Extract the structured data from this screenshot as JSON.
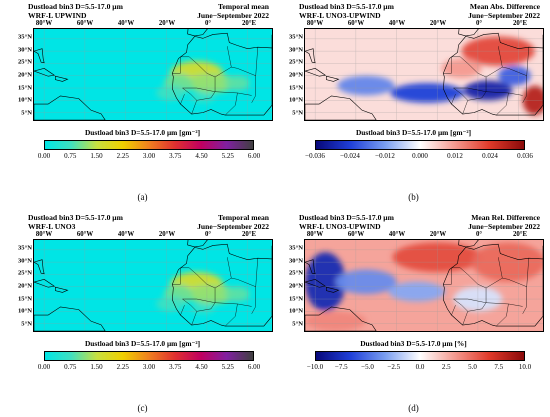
{
  "panels": [
    {
      "id": "a",
      "title_line1": "Dustload bin3 D=5.5-17.0 μm",
      "title_line2": "WRF-L UPWIND",
      "right_line1": "Temporal mean",
      "right_line2": "June−September 2022",
      "lon_labels": [
        "80°W",
        "60°W",
        "40°W",
        "20°W",
        "0°",
        "20°E"
      ],
      "lat_labels": [
        "35°N",
        "30°N",
        "25°N",
        "20°N",
        "15°N",
        "10°N",
        "5°N"
      ],
      "colorbar_title": "Dustload bin3 D=5.5-17.0 μm [gm⁻²]",
      "colorbar_ticks": [
        "0.00",
        "0.75",
        "1.50",
        "2.25",
        "3.00",
        "3.75",
        "4.50",
        "5.25",
        "6.00"
      ],
      "caption": "(a)"
    },
    {
      "id": "b",
      "title_line1": "Dustload bin3 D=5.5-17.0 μm",
      "title_line2": "WRF-L UNO3-UPWIND",
      "right_line1": "Mean Abs. Difference",
      "right_line2": "June−September 2022",
      "lon_labels": [
        "80°W",
        "60°W",
        "40°W",
        "20°W",
        "0°",
        "20°E"
      ],
      "lat_labels": [
        "35°N",
        "30°N",
        "25°N",
        "20°N",
        "15°N",
        "10°N",
        "5°N"
      ],
      "colorbar_title": "Dustload bin3 D=5.5-17.0 μm [gm⁻²]",
      "colorbar_ticks": [
        "−0.036",
        "−0.024",
        "−0.012",
        "0.000",
        "0.012",
        "0.024",
        "0.036"
      ],
      "caption": "(b)"
    },
    {
      "id": "c",
      "title_line1": "Dustload bin3 D=5.5-17.0 μm",
      "title_line2": "WRF-L UNO3",
      "right_line1": "Temporal mean",
      "right_line2": "June−September 2022",
      "lon_labels": [
        "80°W",
        "60°W",
        "40°W",
        "20°W",
        "0°",
        "20°E"
      ],
      "lat_labels": [
        "35°N",
        "30°N",
        "25°N",
        "20°N",
        "15°N",
        "10°N",
        "5°N"
      ],
      "colorbar_title": "Dustload bin3 D=5.5-17.0 μm [gm⁻²]",
      "colorbar_ticks": [
        "0.00",
        "0.75",
        "1.50",
        "2.25",
        "3.00",
        "3.75",
        "4.50",
        "5.25",
        "6.00"
      ],
      "caption": "(c)"
    },
    {
      "id": "d",
      "title_line1": "Dustload bin3 D=5.5-17.0 μm",
      "title_line2": "WRF-L UNO3-UPWIND",
      "right_line1": "Mean Rel. Difference",
      "right_line2": "June−September 2022",
      "lon_labels": [
        "80°W",
        "60°W",
        "40°W",
        "20°W",
        "0°",
        "20°E"
      ],
      "lat_labels": [
        "35°N",
        "30°N",
        "25°N",
        "20°N",
        "15°N",
        "10°N",
        "5°N"
      ],
      "colorbar_title": "Dustload bin3 D=5.5-17.0 μm [%]",
      "colorbar_ticks": [
        "−10.0",
        "−7.5",
        "−5.0",
        "−2.5",
        "0.0",
        "2.5",
        "5.0",
        "7.5",
        "10.0"
      ],
      "caption": "(d)"
    }
  ],
  "chart_data": [
    {
      "panel": "a",
      "type": "heatmap",
      "title": "Dustload bin3 D=5.5-17.0 μm WRF-L UPWIND — Temporal mean, June−September 2022",
      "colorbar_label": "Dustload bin3 D=5.5-17.0 μm [gm⁻²]",
      "colorbar_range": [
        0.0,
        6.0
      ],
      "colormap": [
        "#00e5e5",
        "#40e0c0",
        "#c8e040",
        "#f0d000",
        "#f08020",
        "#e03030",
        "#c00060",
        "#8020a0",
        "#404040"
      ],
      "xlim_deg_lon": [
        -85,
        32
      ],
      "ylim_deg_lat": [
        2,
        39
      ],
      "background_value": 0.0,
      "hotspots": [
        {
          "lon": -5,
          "lat": 21,
          "rlon": 13,
          "rlat": 5,
          "value": 1.7
        },
        {
          "lon": 2,
          "lat": 17,
          "rlon": 12,
          "rlat": 4,
          "value": 1.2
        },
        {
          "lon": -14,
          "lat": 17,
          "rlon": 7,
          "rlat": 4,
          "value": 1.0
        },
        {
          "lon": 15,
          "lat": 17,
          "rlon": 6,
          "rlat": 3,
          "value": 0.9
        },
        {
          "lon": -18,
          "lat": 13,
          "rlon": 7,
          "rlat": 3,
          "value": 0.7
        },
        {
          "lon": -2,
          "lat": 11,
          "rlon": 6,
          "rlat": 2,
          "value": 0.6
        }
      ]
    },
    {
      "panel": "b",
      "type": "heatmap",
      "title": "Dustload bin3 D=5.5-17.0 μm WRF-L UNO3-UPWIND — Mean Abs. Difference, June−September 2022",
      "colorbar_label": "Dustload bin3 D=5.5-17.0 μm [gm⁻²]",
      "colorbar_range": [
        -0.036,
        0.036
      ],
      "colormap": [
        "#08087a",
        "#2040d8",
        "#7a9ef0",
        "#ffffff",
        "#f49a90",
        "#e03a2a",
        "#8a0a0a"
      ],
      "xlim_deg_lon": [
        -85,
        32
      ],
      "ylim_deg_lat": [
        2,
        39
      ],
      "background_value": 0.004,
      "hotspots": [
        {
          "lon": -25,
          "lat": 13,
          "rlon": 18,
          "rlat": 4,
          "value": -0.024
        },
        {
          "lon": -55,
          "lat": 16,
          "rlon": 14,
          "rlat": 4,
          "value": -0.015
        },
        {
          "lon": 5,
          "lat": 14,
          "rlon": 12,
          "rlat": 4,
          "value": -0.03
        },
        {
          "lon": 18,
          "lat": 20,
          "rlon": 8,
          "rlat": 4,
          "value": -0.02
        },
        {
          "lon": 10,
          "lat": 30,
          "rlon": 18,
          "rlat": 6,
          "value": 0.022
        },
        {
          "lon": 28,
          "lat": 10,
          "rlon": 6,
          "rlat": 6,
          "value": 0.03
        },
        {
          "lon": -8,
          "lat": 23,
          "rlon": 10,
          "rlat": 4,
          "value": 0.012
        }
      ]
    },
    {
      "panel": "c",
      "type": "heatmap",
      "title": "Dustload bin3 D=5.5-17.0 μm WRF-L UNO3 — Temporal mean, June−September 2022",
      "colorbar_label": "Dustload bin3 D=5.5-17.0 μm [gm⁻²]",
      "colorbar_range": [
        0.0,
        6.0
      ],
      "colormap": [
        "#00e5e5",
        "#40e0c0",
        "#c8e040",
        "#f0d000",
        "#f08020",
        "#e03030",
        "#c00060",
        "#8020a0",
        "#404040"
      ],
      "xlim_deg_lon": [
        -85,
        32
      ],
      "ylim_deg_lat": [
        2,
        39
      ],
      "background_value": 0.0,
      "hotspots": [
        {
          "lon": -5,
          "lat": 21,
          "rlon": 13,
          "rlat": 5,
          "value": 1.7
        },
        {
          "lon": 2,
          "lat": 17,
          "rlon": 12,
          "rlat": 4,
          "value": 1.2
        },
        {
          "lon": -14,
          "lat": 17,
          "rlon": 7,
          "rlat": 4,
          "value": 1.0
        },
        {
          "lon": 15,
          "lat": 17,
          "rlon": 6,
          "rlat": 3,
          "value": 0.9
        },
        {
          "lon": -18,
          "lat": 13,
          "rlon": 7,
          "rlat": 3,
          "value": 0.7
        },
        {
          "lon": -2,
          "lat": 11,
          "rlon": 6,
          "rlat": 2,
          "value": 0.6
        }
      ]
    },
    {
      "panel": "d",
      "type": "heatmap",
      "title": "Dustload bin3 D=5.5-17.0 μm WRF-L UNO3-UPWIND — Mean Rel. Difference, June−September 2022",
      "colorbar_label": "Dustload bin3 D=5.5-17.0 μm [%]",
      "colorbar_range": [
        -10.0,
        10.0
      ],
      "colormap": [
        "#08087a",
        "#2040d8",
        "#7a9ef0",
        "#ffffff",
        "#f49a90",
        "#e03a2a",
        "#8a0a0a"
      ],
      "xlim_deg_lon": [
        -85,
        32
      ],
      "ylim_deg_lat": [
        2,
        39
      ],
      "background_value": 3.0,
      "hotspots": [
        {
          "lon": -75,
          "lat": 22,
          "rlon": 10,
          "rlat": 12,
          "value": -8.0
        },
        {
          "lon": -55,
          "lat": 22,
          "rlon": 15,
          "rlat": 5,
          "value": -4.0
        },
        {
          "lon": -30,
          "lat": 18,
          "rlon": 14,
          "rlat": 4,
          "value": -3.0
        },
        {
          "lon": -20,
          "lat": 32,
          "rlon": 22,
          "rlat": 6,
          "value": 6.0
        },
        {
          "lon": 15,
          "lat": 30,
          "rlon": 18,
          "rlat": 8,
          "value": 5.0
        },
        {
          "lon": -70,
          "lat": 6,
          "rlon": 15,
          "rlat": 4,
          "value": 4.0
        },
        {
          "lon": 0,
          "lat": 15,
          "rlon": 12,
          "rlat": 5,
          "value": -1.0
        }
      ]
    }
  ]
}
